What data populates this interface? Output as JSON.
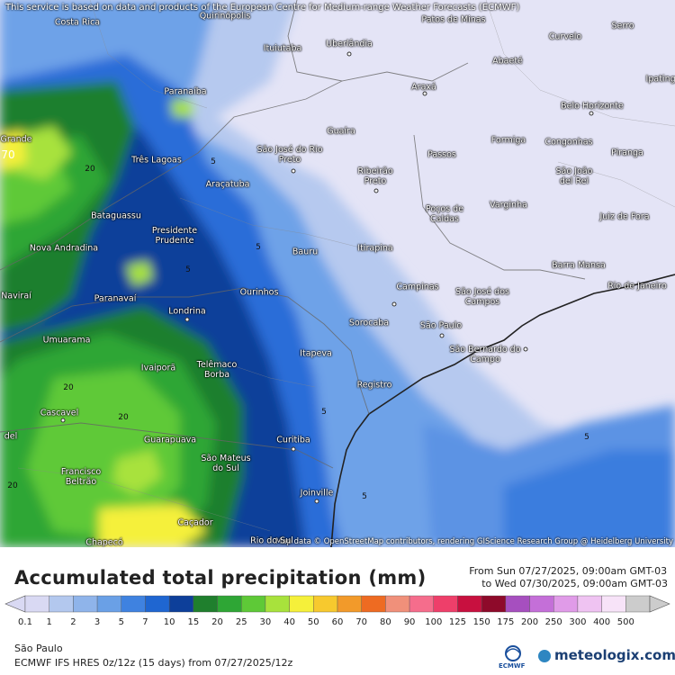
{
  "map": {
    "notice": "This service is based on data and products of the European Centre for Medium-range Weather Forecasts (ECMWF)",
    "attribution": "Map data © OpenStreetMap contributors, rendering GIScience Research Group @ Heidelberg University",
    "places": [
      {
        "name": "Costa Rica"
      },
      {
        "name": "Quirinópolis"
      },
      {
        "name": "Patos de Minas"
      },
      {
        "name": "Curvelo"
      },
      {
        "name": "Serro"
      },
      {
        "name": "Ituiutaba"
      },
      {
        "name": "Uberlândia"
      },
      {
        "name": "Abaeté"
      },
      {
        "name": "Ipatinga"
      },
      {
        "name": "Paranaíba"
      },
      {
        "name": "Araxá"
      },
      {
        "name": "Belo Horizonte"
      },
      {
        "name": "Grande"
      },
      {
        "name": "Guaíra"
      },
      {
        "name": "Formiga"
      },
      {
        "name": "Congonhas"
      },
      {
        "name": "Três Lagoas"
      },
      {
        "name": "São José do Rio Preto"
      },
      {
        "name": "Passos"
      },
      {
        "name": "Piranga"
      },
      {
        "name": "Ribeirão Preto"
      },
      {
        "name": "São João del Rei"
      },
      {
        "name": "Araçatuba"
      },
      {
        "name": "Varginha"
      },
      {
        "name": "Bataguassu"
      },
      {
        "name": "Poços de Caldas"
      },
      {
        "name": "Juiz de Fora"
      },
      {
        "name": "Presidente Prudente"
      },
      {
        "name": "Nova Andradina"
      },
      {
        "name": "Bauru"
      },
      {
        "name": "Itirapina"
      },
      {
        "name": "Barra Mansa"
      },
      {
        "name": "Naviraí"
      },
      {
        "name": "Paranavaí"
      },
      {
        "name": "Ourinhos"
      },
      {
        "name": "Campinas"
      },
      {
        "name": "São José dos Campos"
      },
      {
        "name": "Rio de Janeiro"
      },
      {
        "name": "Londrina"
      },
      {
        "name": "Sorocaba"
      },
      {
        "name": "São Paulo"
      },
      {
        "name": "Umuarama"
      },
      {
        "name": "São Bernardo do Campo"
      },
      {
        "name": "Itapeva"
      },
      {
        "name": "Ivaiporã"
      },
      {
        "name": "Telêmaco Borba"
      },
      {
        "name": "Registro"
      },
      {
        "name": "Cascavel"
      },
      {
        "name": "Guarapuava"
      },
      {
        "name": "Curitiba"
      },
      {
        "name": "São Mateus do Sul"
      },
      {
        "name": "Francisco Beltrão"
      },
      {
        "name": "Joinville"
      },
      {
        "name": "Caçador"
      },
      {
        "name": "Chapecó"
      },
      {
        "name": "Rio do Sul"
      },
      {
        "name": "del"
      }
    ],
    "contour_values": [
      "70",
      "20",
      "5",
      "5",
      "5",
      "20",
      "20",
      "20",
      "5",
      "5",
      "5"
    ]
  },
  "footer": {
    "title": "Accumulated total precipitation (mm)",
    "period_from": "From Sun 07/27/2025, 09:00am GMT-03",
    "period_to": "to Wed 07/30/2025, 09:00am GMT-03",
    "region": "São Paulo",
    "model": "ECMWF IFS HRES 0z/12z (15 days) from 07/27/2025/12z",
    "ecmwf_logo": "ECMWF",
    "brand": "meteologix.com"
  },
  "scale": {
    "labels": [
      "0.1",
      "1",
      "2",
      "3",
      "5",
      "7",
      "10",
      "15",
      "20",
      "25",
      "30",
      "40",
      "50",
      "60",
      "70",
      "80",
      "90",
      "100",
      "125",
      "150",
      "175",
      "200",
      "250",
      "300",
      "400",
      "500"
    ],
    "colors": [
      "#d9d9f3",
      "#b3c8ee",
      "#8fb4ea",
      "#6aa0e6",
      "#3f82e0",
      "#1f66d1",
      "#0d3f9a",
      "#1f7f2d",
      "#2ea635",
      "#5ec937",
      "#a8e23c",
      "#f5f03a",
      "#f7c92e",
      "#f29a2a",
      "#ee6b22",
      "#f0907a",
      "#f56d8c",
      "#ee3f6a",
      "#c8103f",
      "#8e0a2a",
      "#a64fbf",
      "#c46fd8",
      "#e09be8",
      "#efc3f2",
      "#f7e3f8",
      "#cccccc"
    ]
  }
}
